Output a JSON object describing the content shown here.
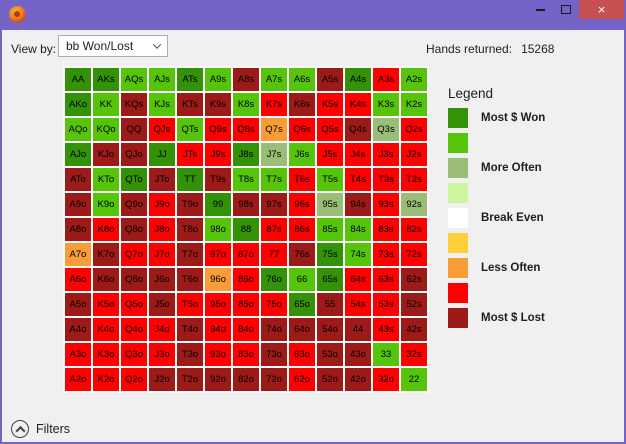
{
  "window": {
    "titlebar_color": "#7464c8",
    "close_button_color": "#c75050",
    "close_glyph": "×"
  },
  "toolbar": {
    "view_by_label": "View by:",
    "view_by_value": "bb Won/Lost",
    "hands_returned_label": "Hands returned:",
    "hands_returned_value": "15268"
  },
  "colors": {
    "dg": "#339208",
    "bg": "#55c40b",
    "sg": "#9abd78",
    "pg": "#ccf59e",
    "wh": "#ffffff",
    "yl": "#fdd037",
    "or": "#f89c38",
    "rd": "#fd0100",
    "dr": "#9c1b18"
  },
  "grid": {
    "rows": [
      [
        [
          "AA",
          "dg"
        ],
        [
          "AKs",
          "dg"
        ],
        [
          "AQs",
          "bg"
        ],
        [
          "AJs",
          "bg"
        ],
        [
          "ATs",
          "dg"
        ],
        [
          "A9s",
          "bg"
        ],
        [
          "A8s",
          "dr"
        ],
        [
          "A7s",
          "bg"
        ],
        [
          "A6s",
          "bg"
        ],
        [
          "A5s",
          "dr"
        ],
        [
          "A4s",
          "dg"
        ],
        [
          "A3s",
          "rd"
        ],
        [
          "A2s",
          "bg"
        ]
      ],
      [
        [
          "AKo",
          "dg"
        ],
        [
          "KK",
          "bg"
        ],
        [
          "KQs",
          "dr"
        ],
        [
          "KJs",
          "bg"
        ],
        [
          "KTs",
          "dr"
        ],
        [
          "K9s",
          "dr"
        ],
        [
          "K8s",
          "bg"
        ],
        [
          "K7s",
          "rd"
        ],
        [
          "K6s",
          "dr"
        ],
        [
          "K5s",
          "rd"
        ],
        [
          "K4s",
          "rd"
        ],
        [
          "K3s",
          "bg"
        ],
        [
          "K2s",
          "bg"
        ]
      ],
      [
        [
          "AQo",
          "bg"
        ],
        [
          "KQo",
          "bg"
        ],
        [
          "QQ",
          "dr"
        ],
        [
          "QJs",
          "rd"
        ],
        [
          "QTs",
          "bg"
        ],
        [
          "Q9s",
          "rd"
        ],
        [
          "Q8s",
          "rd"
        ],
        [
          "Q7s",
          "or"
        ],
        [
          "Q6s",
          "rd"
        ],
        [
          "Q5s",
          "rd"
        ],
        [
          "Q4s",
          "dr"
        ],
        [
          "Q3s",
          "sg"
        ],
        [
          "Q2s",
          "rd"
        ]
      ],
      [
        [
          "AJo",
          "dg"
        ],
        [
          "KJo",
          "dr"
        ],
        [
          "QJo",
          "dr"
        ],
        [
          "JJ",
          "dg"
        ],
        [
          "JTs",
          "rd"
        ],
        [
          "J9s",
          "rd"
        ],
        [
          "J8s",
          "dg"
        ],
        [
          "J7s",
          "sg"
        ],
        [
          "J6s",
          "bg"
        ],
        [
          "J5s",
          "rd"
        ],
        [
          "J4s",
          "rd"
        ],
        [
          "J3s",
          "rd"
        ],
        [
          "J2s",
          "rd"
        ]
      ],
      [
        [
          "ATo",
          "dr"
        ],
        [
          "KTo",
          "bg"
        ],
        [
          "QTo",
          "dg"
        ],
        [
          "JTo",
          "dr"
        ],
        [
          "TT",
          "dg"
        ],
        [
          "T9s",
          "dr"
        ],
        [
          "T8s",
          "bg"
        ],
        [
          "T7s",
          "bg"
        ],
        [
          "T6s",
          "rd"
        ],
        [
          "T5s",
          "bg"
        ],
        [
          "T4s",
          "rd"
        ],
        [
          "T3s",
          "rd"
        ],
        [
          "T2s",
          "rd"
        ]
      ],
      [
        [
          "A9o",
          "dr"
        ],
        [
          "K9o",
          "bg"
        ],
        [
          "Q9o",
          "dr"
        ],
        [
          "J9o",
          "rd"
        ],
        [
          "T9o",
          "dr"
        ],
        [
          "99",
          "dg"
        ],
        [
          "98s",
          "dr"
        ],
        [
          "97s",
          "dr"
        ],
        [
          "96s",
          "rd"
        ],
        [
          "95s",
          "sg"
        ],
        [
          "94s",
          "dr"
        ],
        [
          "93s",
          "rd"
        ],
        [
          "92s",
          "sg"
        ]
      ],
      [
        [
          "A8o",
          "dr"
        ],
        [
          "K8o",
          "rd"
        ],
        [
          "Q8o",
          "dr"
        ],
        [
          "J8o",
          "rd"
        ],
        [
          "T8o",
          "dr"
        ],
        [
          "98o",
          "bg"
        ],
        [
          "88",
          "dg"
        ],
        [
          "87s",
          "rd"
        ],
        [
          "86s",
          "rd"
        ],
        [
          "85s",
          "bg"
        ],
        [
          "84s",
          "bg"
        ],
        [
          "83s",
          "rd"
        ],
        [
          "82s",
          "rd"
        ]
      ],
      [
        [
          "A7o",
          "or"
        ],
        [
          "K7o",
          "dr"
        ],
        [
          "Q7o",
          "rd"
        ],
        [
          "J7o",
          "rd"
        ],
        [
          "T7o",
          "dr"
        ],
        [
          "97o",
          "rd"
        ],
        [
          "87o",
          "rd"
        ],
        [
          "77",
          "rd"
        ],
        [
          "76s",
          "dr"
        ],
        [
          "75s",
          "dg"
        ],
        [
          "74s",
          "bg"
        ],
        [
          "73s",
          "rd"
        ],
        [
          "72s",
          "rd"
        ]
      ],
      [
        [
          "A6o",
          "rd"
        ],
        [
          "K6o",
          "dr"
        ],
        [
          "Q6o",
          "dr"
        ],
        [
          "J6o",
          "dr"
        ],
        [
          "T6o",
          "dr"
        ],
        [
          "96o",
          "or"
        ],
        [
          "86o",
          "rd"
        ],
        [
          "76o",
          "dg"
        ],
        [
          "66",
          "bg"
        ],
        [
          "65s",
          "dg"
        ],
        [
          "64s",
          "rd"
        ],
        [
          "63s",
          "rd"
        ],
        [
          "62s",
          "dr"
        ]
      ],
      [
        [
          "A5o",
          "dr"
        ],
        [
          "K5o",
          "rd"
        ],
        [
          "Q5o",
          "rd"
        ],
        [
          "J5o",
          "dr"
        ],
        [
          "T5o",
          "rd"
        ],
        [
          "95o",
          "rd"
        ],
        [
          "85o",
          "rd"
        ],
        [
          "75o",
          "rd"
        ],
        [
          "65o",
          "dg"
        ],
        [
          "55",
          "dr"
        ],
        [
          "54s",
          "rd"
        ],
        [
          "53s",
          "rd"
        ],
        [
          "52s",
          "dr"
        ]
      ],
      [
        [
          "A4o",
          "dr"
        ],
        [
          "K4o",
          "rd"
        ],
        [
          "Q4o",
          "rd"
        ],
        [
          "J4o",
          "rd"
        ],
        [
          "T4o",
          "dr"
        ],
        [
          "94o",
          "rd"
        ],
        [
          "84o",
          "rd"
        ],
        [
          "74o",
          "dr"
        ],
        [
          "64o",
          "dr"
        ],
        [
          "54o",
          "dr"
        ],
        [
          "44",
          "dr"
        ],
        [
          "43s",
          "rd"
        ],
        [
          "42s",
          "dr"
        ]
      ],
      [
        [
          "A3o",
          "rd"
        ],
        [
          "K3o",
          "rd"
        ],
        [
          "Q3o",
          "rd"
        ],
        [
          "J3o",
          "rd"
        ],
        [
          "T3o",
          "dr"
        ],
        [
          "93o",
          "rd"
        ],
        [
          "83o",
          "rd"
        ],
        [
          "73o",
          "dr"
        ],
        [
          "63o",
          "rd"
        ],
        [
          "53o",
          "dr"
        ],
        [
          "43o",
          "dr"
        ],
        [
          "33",
          "bg"
        ],
        [
          "32s",
          "rd"
        ]
      ],
      [
        [
          "A2o",
          "rd"
        ],
        [
          "K2o",
          "rd"
        ],
        [
          "Q2o",
          "rd"
        ],
        [
          "J2o",
          "dr"
        ],
        [
          "T2o",
          "dr"
        ],
        [
          "92o",
          "dr"
        ],
        [
          "82o",
          "dr"
        ],
        [
          "72o",
          "dr"
        ],
        [
          "62o",
          "rd"
        ],
        [
          "52o",
          "dr"
        ],
        [
          "42o",
          "dr"
        ],
        [
          "32o",
          "rd"
        ],
        [
          "22",
          "bg"
        ]
      ]
    ]
  },
  "legend": {
    "title": "Legend",
    "entries": [
      {
        "c": "dg",
        "label": "Most $ Won"
      },
      {
        "c": "bg",
        "label": ""
      },
      {
        "c": "sg",
        "label": "More Often"
      },
      {
        "c": "pg",
        "label": ""
      },
      {
        "c": "wh",
        "label": "Break Even"
      },
      {
        "c": "yl",
        "label": ""
      },
      {
        "c": "or",
        "label": "Less Often"
      },
      {
        "c": "rd",
        "label": ""
      },
      {
        "c": "dr",
        "label": "Most $ Lost"
      }
    ]
  },
  "filters": {
    "label": "Filters"
  }
}
